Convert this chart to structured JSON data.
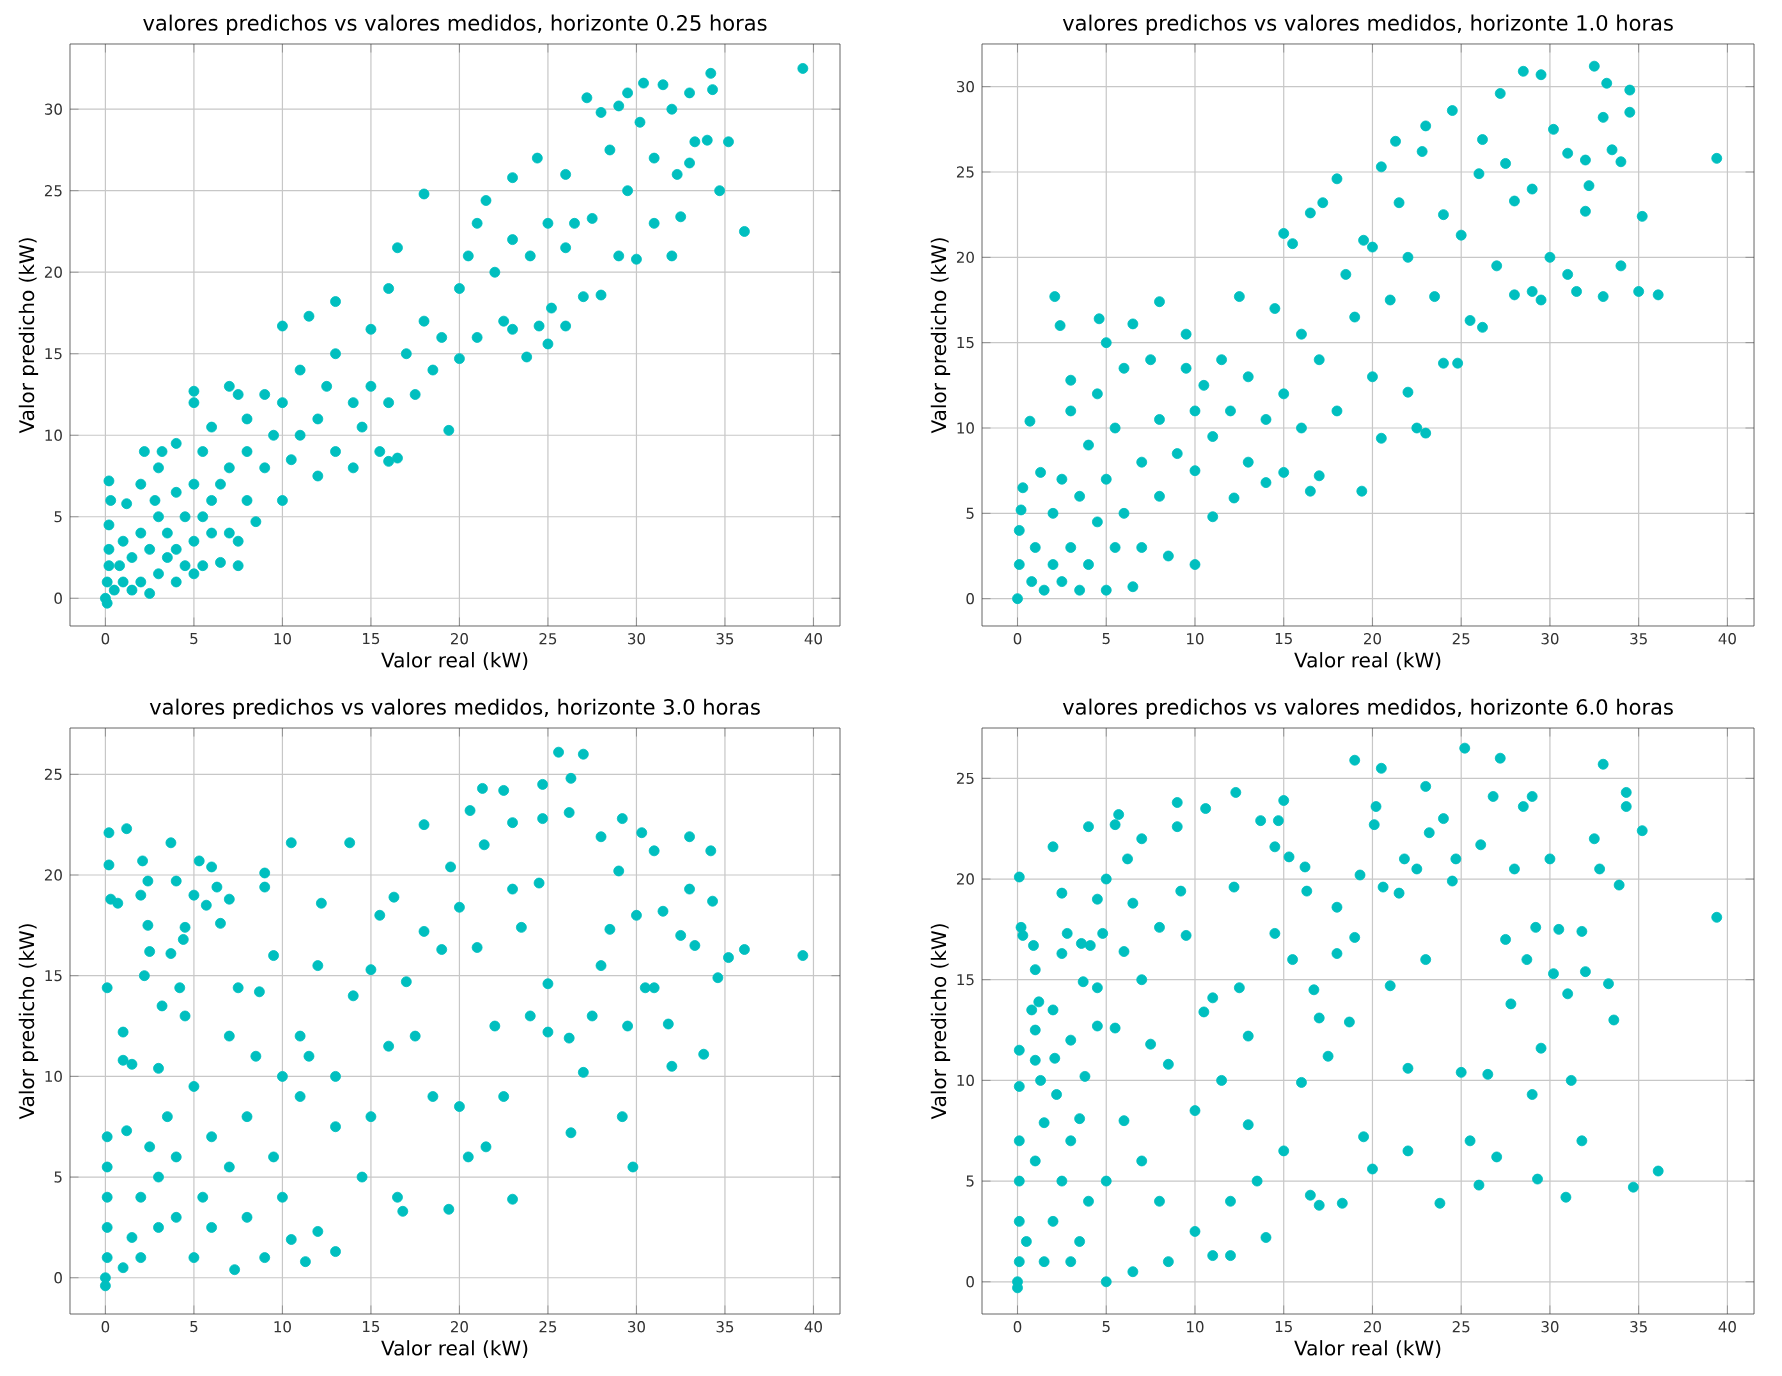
{
  "chart_data": [
    {
      "type": "scatter",
      "title": "valores predichos vs valores medidos, horizonte 0.25 horas",
      "xlabel": "Valor real (kW)",
      "ylabel": "Valor predicho (kW)",
      "color": "#00bfbf",
      "marker": "circle",
      "grid": true,
      "xlim": [
        -2,
        41.5
      ],
      "ylim": [
        -1.7,
        34
      ],
      "xticks": [
        0,
        5,
        10,
        15,
        20,
        25,
        30,
        35,
        40
      ],
      "yticks": [
        0,
        5,
        10,
        15,
        20,
        25,
        30
      ],
      "x": [
        0,
        0.1,
        0.1,
        0.2,
        0.2,
        0.2,
        0.2,
        0.3,
        0.5,
        0.8,
        1,
        1,
        1.2,
        1.5,
        1.5,
        2,
        2,
        2,
        2.2,
        2.5,
        2.5,
        2.8,
        3,
        3,
        3,
        3.2,
        3.5,
        3.5,
        4,
        4,
        4,
        4,
        4.5,
        4.5,
        5,
        5,
        5,
        5,
        5,
        5.5,
        5.5,
        5.5,
        6,
        6,
        6,
        6.5,
        6.5,
        7,
        7,
        7,
        7.5,
        7.5,
        7.5,
        8,
        8,
        8,
        8.5,
        9,
        9,
        9.5,
        10,
        10,
        10,
        10.5,
        11,
        11,
        11.5,
        12,
        12,
        12.5,
        13,
        13,
        13,
        14,
        14,
        14.5,
        15,
        15,
        15.5,
        16,
        16,
        16,
        16.5,
        16.5,
        17,
        17.5,
        18,
        18,
        18.5,
        19,
        19.4,
        20,
        20,
        20.5,
        21,
        21,
        21.5,
        22,
        22.5,
        23,
        23,
        23,
        23.8,
        24,
        24.4,
        24.5,
        25,
        25,
        25.2,
        26,
        26,
        26,
        26.5,
        27,
        27.2,
        27.5,
        28,
        28,
        28.5,
        29,
        29,
        29.5,
        29.5,
        30,
        30.2,
        30.4,
        31,
        31,
        31.5,
        32,
        32,
        32.3,
        32.5,
        33,
        33,
        33.3,
        34,
        34.2,
        34.3,
        34.7,
        35.2,
        36.1,
        39.4
      ],
      "values": [
        0,
        -0.3,
        1,
        2,
        3,
        4.5,
        7.2,
        6,
        0.5,
        2,
        1,
        3.5,
        5.8,
        0.5,
        2.5,
        1,
        4,
        7,
        9,
        0.3,
        3,
        6,
        1.5,
        5,
        8,
        9,
        2.5,
        4,
        1,
        3,
        6.5,
        9.5,
        2,
        5,
        1.5,
        3.5,
        7,
        12.7,
        12,
        2,
        5,
        9,
        4,
        6,
        10.5,
        7,
        2.2,
        4,
        8,
        13,
        3.5,
        2,
        12.5,
        6,
        9,
        11,
        4.7,
        8,
        12.5,
        10,
        6,
        12,
        16.7,
        8.5,
        10,
        14,
        17.3,
        7.5,
        11,
        13,
        9,
        15,
        18.2,
        8,
        12,
        10.5,
        13,
        16.5,
        9,
        8.4,
        12,
        19,
        8.6,
        21.5,
        15,
        12.5,
        24.8,
        17,
        14,
        16,
        10.3,
        19,
        14.7,
        21,
        23,
        16,
        24.4,
        20,
        17,
        22,
        25.8,
        16.5,
        14.8,
        21,
        27,
        16.7,
        23,
        15.6,
        17.8,
        26,
        21.5,
        16.7,
        23,
        18.5,
        30.7,
        23.3,
        29.8,
        18.6,
        27.5,
        30.2,
        21,
        31,
        25,
        20.8,
        29.2,
        31.6,
        23,
        27,
        31.5,
        30,
        21,
        26,
        23.4,
        31,
        26.7,
        28,
        28.1,
        32.2,
        31.2,
        25,
        28,
        22.5,
        32.5
      ]
    },
    {
      "type": "scatter",
      "title": "valores predichos vs valores medidos, horizonte 1.0 horas",
      "xlabel": "Valor real (kW)",
      "ylabel": "Valor predicho (kW)",
      "color": "#00bfbf",
      "marker": "circle",
      "grid": true,
      "xlim": [
        -2,
        41.5
      ],
      "ylim": [
        -1.6,
        32.5
      ],
      "xticks": [
        0,
        5,
        10,
        15,
        20,
        25,
        30,
        35,
        40
      ],
      "yticks": [
        0,
        5,
        10,
        15,
        20,
        25,
        30
      ],
      "x": [
        0,
        0.1,
        0.1,
        0.2,
        0.3,
        0.7,
        0.8,
        1,
        1.3,
        1.5,
        2,
        2,
        2.1,
        2.4,
        2.5,
        2.5,
        3,
        3,
        3,
        3.5,
        3.5,
        4,
        4,
        4.5,
        4.5,
        4.6,
        5,
        5,
        5,
        5.5,
        5.5,
        6,
        6,
        6.5,
        6.5,
        7,
        7,
        7.5,
        8,
        8,
        8,
        8.5,
        9,
        9.5,
        9.5,
        10,
        10,
        10,
        10.5,
        11,
        11,
        11.5,
        12,
        12.2,
        12.5,
        13,
        13,
        14,
        14,
        14.5,
        15,
        15,
        15,
        15.5,
        16,
        16,
        16.5,
        16.5,
        17,
        17,
        17.2,
        18,
        18,
        18.5,
        19,
        19.4,
        19.5,
        20,
        20,
        20.5,
        20.5,
        21,
        21.3,
        21.5,
        22,
        22,
        22.5,
        22.8,
        23,
        23,
        23.5,
        24,
        24,
        24.5,
        24.8,
        25,
        25.5,
        26,
        26.2,
        26.2,
        27,
        27.2,
        27.5,
        28,
        28,
        28.5,
        29,
        29,
        29.5,
        29.5,
        30,
        30.2,
        31,
        31,
        31.5,
        32,
        32,
        32.2,
        32.5,
        33,
        33,
        33.2,
        33.5,
        34,
        34,
        34.5,
        34.5,
        35,
        35.2,
        36.1,
        39.4
      ],
      "values": [
        0,
        2,
        4,
        5.2,
        6.5,
        10.4,
        1,
        3,
        7.4,
        0.5,
        2,
        5,
        17.7,
        16,
        1,
        7,
        3,
        12.8,
        11,
        0.5,
        6,
        2,
        9,
        4.5,
        12,
        16.4,
        0.5,
        7,
        15,
        10,
        3,
        13.5,
        5,
        16.1,
        0.7,
        8,
        3,
        14,
        6,
        10.5,
        17.4,
        2.5,
        8.5,
        13.5,
        15.5,
        2,
        7.5,
        11,
        12.5,
        4.8,
        9.5,
        14,
        11,
        5.9,
        17.7,
        8,
        13,
        6.8,
        10.5,
        17,
        7.4,
        12,
        21.4,
        20.8,
        10,
        15.5,
        6.3,
        22.6,
        7.2,
        14,
        23.2,
        11,
        24.6,
        19,
        16.5,
        6.3,
        21,
        13,
        20.6,
        9.4,
        25.3,
        17.5,
        26.8,
        23.2,
        12.1,
        20,
        10,
        26.2,
        9.7,
        27.7,
        17.7,
        22.5,
        13.8,
        28.6,
        13.8,
        21.3,
        16.3,
        24.9,
        15.9,
        26.9,
        19.5,
        29.6,
        25.5,
        17.8,
        23.3,
        30.9,
        18,
        24,
        30.7,
        17.5,
        20,
        27.5,
        26.1,
        19,
        18,
        22.7,
        25.7,
        24.2,
        31.2,
        28.2,
        17.7,
        30.2,
        26.3,
        19.5,
        25.6,
        29.8,
        28.5,
        18,
        22.4,
        17.8,
        25.8
      ]
    },
    {
      "type": "scatter",
      "title": "valores predichos vs valores medidos, horizonte 3.0 horas",
      "xlabel": "Valor real (kW)",
      "ylabel": "Valor predicho (kW)",
      "color": "#00bfbf",
      "marker": "circle",
      "grid": true,
      "xlim": [
        -2,
        41.5
      ],
      "ylim": [
        -1.8,
        27.3
      ],
      "xticks": [
        0,
        5,
        10,
        15,
        20,
        25,
        30,
        35,
        40
      ],
      "yticks": [
        0,
        5,
        10,
        15,
        20,
        25
      ],
      "x": [
        0,
        0,
        0.1,
        0.1,
        0.1,
        0.1,
        0.1,
        0.1,
        0.2,
        0.2,
        0.3,
        0.7,
        1,
        1,
        1,
        1.2,
        1.2,
        1.5,
        1.5,
        2,
        2,
        2,
        2.1,
        2.2,
        2.4,
        2.4,
        2.5,
        2.5,
        3,
        3,
        3,
        3.2,
        3.5,
        3.7,
        3.7,
        4,
        4,
        4,
        4.2,
        4.4,
        4.5,
        4.5,
        5,
        5,
        5,
        5.3,
        5.5,
        5.7,
        6,
        6,
        6,
        6.3,
        6.5,
        7,
        7,
        7,
        7.3,
        7.5,
        8,
        8,
        8.5,
        8.7,
        9,
        9,
        9,
        9.5,
        9.5,
        10,
        10,
        10.5,
        10.5,
        11,
        11,
        11.3,
        11.5,
        12,
        12,
        12.2,
        13,
        13,
        13,
        13.8,
        14,
        14.5,
        15,
        15,
        15.5,
        16,
        16.3,
        16.5,
        16.8,
        17,
        17.5,
        18,
        18,
        18.5,
        19,
        19.4,
        19.5,
        20,
        20,
        20.5,
        20.6,
        21,
        21.3,
        21.4,
        21.5,
        22,
        22.5,
        22.5,
        23,
        23,
        23,
        23.5,
        24,
        24.5,
        24.7,
        24.7,
        25,
        25,
        25.6,
        26.2,
        26.2,
        26.3,
        26.3,
        27,
        27,
        27.5,
        28,
        28,
        28.5,
        29,
        29.2,
        29.2,
        29.5,
        29.8,
        30,
        30.3,
        30.5,
        31,
        31,
        31.5,
        31.8,
        32,
        32.5,
        33,
        33,
        33.3,
        33.8,
        34.2,
        34.3,
        34.6,
        35.2,
        36.1,
        39.4
      ],
      "values": [
        0,
        -0.4,
        1,
        2.5,
        4,
        5.5,
        7,
        14.4,
        20.5,
        22.1,
        18.8,
        18.6,
        0.5,
        10.8,
        12.2,
        22.3,
        7.3,
        2,
        10.6,
        1,
        4,
        19,
        20.7,
        15,
        19.7,
        17.5,
        16.2,
        6.5,
        2.5,
        10.4,
        5,
        13.5,
        8,
        21.6,
        16.1,
        3,
        19.7,
        6,
        14.4,
        16.8,
        17.4,
        13,
        1,
        9.5,
        19,
        20.7,
        4,
        18.5,
        2.5,
        7,
        20.4,
        19.4,
        17.6,
        12,
        5.5,
        18.8,
        0.4,
        14.4,
        8,
        3,
        11,
        14.2,
        1,
        19.4,
        20.1,
        6,
        16,
        4,
        10,
        21.6,
        1.9,
        12,
        9,
        0.8,
        11,
        2.3,
        15.5,
        18.6,
        1.3,
        10,
        7.5,
        21.6,
        14,
        5,
        15.3,
        8,
        18,
        11.5,
        18.9,
        4,
        3.3,
        14.7,
        12,
        22.5,
        17.2,
        9,
        16.3,
        3.4,
        20.4,
        8.5,
        18.4,
        6,
        23.2,
        16.4,
        24.3,
        21.5,
        6.5,
        12.5,
        24.2,
        9,
        3.9,
        19.3,
        22.6,
        17.4,
        13,
        19.6,
        22.8,
        24.5,
        14.6,
        12.2,
        26.1,
        11.9,
        23.1,
        24.8,
        7.2,
        26,
        10.2,
        13,
        21.9,
        15.5,
        17.3,
        20.2,
        8,
        22.8,
        12.5,
        5.5,
        18,
        22.1,
        14.4,
        21.2,
        14.4,
        18.2,
        12.6,
        10.5,
        17,
        21.9,
        19.3,
        16.5,
        11.1,
        21.2,
        18.7,
        14.9,
        15.9,
        16.3,
        16
      ]
    },
    {
      "type": "scatter",
      "title": "valores predichos vs valores medidos, horizonte 6.0 horas",
      "xlabel": "Valor real (kW)",
      "ylabel": "Valor predicho (kW)",
      "color": "#00bfbf",
      "marker": "circle",
      "grid": true,
      "xlim": [
        -2,
        41.5
      ],
      "ylim": [
        -1.6,
        27.5
      ],
      "xticks": [
        0,
        5,
        10,
        15,
        20,
        25,
        30,
        35,
        40
      ],
      "yticks": [
        0,
        5,
        10,
        15,
        20,
        25
      ],
      "x": [
        0,
        0,
        0.1,
        0.1,
        0.1,
        0.1,
        0.1,
        0.1,
        0.2,
        0.1,
        0.3,
        0.5,
        0.8,
        0.9,
        1,
        1,
        1,
        1,
        1.2,
        1.3,
        1.5,
        1.5,
        2,
        2,
        2,
        2.1,
        2.2,
        2.5,
        2.5,
        2.5,
        2.8,
        3,
        3,
        3,
        3.5,
        3.5,
        3.6,
        3.7,
        3.8,
        4,
        4,
        4.1,
        4.5,
        4.5,
        4.5,
        4.8,
        5,
        5,
        5,
        5.5,
        5.5,
        5.7,
        6,
        6,
        6.2,
        6.5,
        6.5,
        7,
        7,
        7,
        7.5,
        8,
        8,
        8.5,
        8.5,
        9,
        9,
        9.2,
        9.5,
        10,
        10,
        10.5,
        10.6,
        11,
        11,
        11.5,
        12,
        12,
        12.2,
        12.3,
        12.5,
        13,
        13,
        13.5,
        13.7,
        14,
        14.5,
        14.5,
        14.7,
        15,
        15,
        15.3,
        15.5,
        16,
        16.2,
        16.3,
        16.5,
        16.7,
        17,
        17,
        17.5,
        18,
        18,
        18.3,
        18.7,
        19,
        19,
        19.3,
        19.5,
        20,
        20.1,
        20.2,
        20.5,
        20.6,
        21,
        21.5,
        21.8,
        22,
        22,
        22.5,
        23,
        23,
        23.2,
        23.8,
        24,
        24.5,
        24.7,
        25,
        25.2,
        25.5,
        26,
        26.1,
        26.5,
        26.8,
        27,
        27.2,
        27.5,
        27.8,
        28,
        28.5,
        28.7,
        29,
        29,
        29.2,
        29.3,
        29.5,
        30,
        30.2,
        30.5,
        30.9,
        31,
        31.2,
        31.8,
        31.8,
        32,
        32.5,
        32.8,
        33,
        33.3,
        33.6,
        33.9,
        34.3,
        34.3,
        34.7,
        35.2,
        36.1,
        39.4
      ],
      "values": [
        0,
        -0.3,
        1,
        3,
        5,
        7,
        9.7,
        11.5,
        17.6,
        20.1,
        17.2,
        2,
        13.5,
        16.7,
        15.5,
        12.5,
        11,
        6,
        13.9,
        10,
        1,
        7.9,
        3,
        21.6,
        13.5,
        11.1,
        9.3,
        19.3,
        16.3,
        5,
        17.3,
        1,
        12,
        7,
        2,
        8.1,
        16.8,
        14.9,
        10.2,
        22.6,
        4,
        16.7,
        19,
        12.7,
        14.6,
        17.3,
        0,
        20,
        5,
        22.7,
        12.6,
        23.2,
        16.4,
        8,
        21,
        18.8,
        0.5,
        22,
        15,
        6,
        11.8,
        4,
        17.6,
        10.8,
        1,
        23.8,
        22.6,
        19.4,
        17.2,
        8.5,
        2.5,
        13.4,
        23.5,
        14.1,
        1.3,
        10,
        1.3,
        4,
        19.6,
        24.3,
        14.6,
        7.8,
        12.2,
        5,
        22.9,
        2.2,
        21.6,
        17.3,
        22.9,
        23.9,
        6.5,
        21.1,
        16,
        9.9,
        20.6,
        19.4,
        4.3,
        14.5,
        3.8,
        13.1,
        11.2,
        18.6,
        16.3,
        3.9,
        12.9,
        25.9,
        17.1,
        20.2,
        7.2,
        5.6,
        22.7,
        23.6,
        25.5,
        19.6,
        14.7,
        19.3,
        21,
        10.6,
        6.5,
        20.5,
        24.6,
        16,
        22.3,
        3.9,
        23,
        19.9,
        21,
        10.4,
        26.5,
        7,
        4.8,
        21.7,
        10.3,
        24.1,
        6.2,
        26,
        17,
        13.8,
        20.5,
        23.6,
        16,
        24.1,
        9.3,
        17.6,
        5.1,
        11.6,
        21,
        15.3,
        17.5,
        4.2,
        14.3,
        10,
        7,
        17.4,
        15.4,
        22,
        20.5,
        25.7,
        14.8,
        13,
        19.7,
        24.3,
        23.6,
        4.7,
        22.4,
        5.5,
        18.1
      ]
    }
  ]
}
